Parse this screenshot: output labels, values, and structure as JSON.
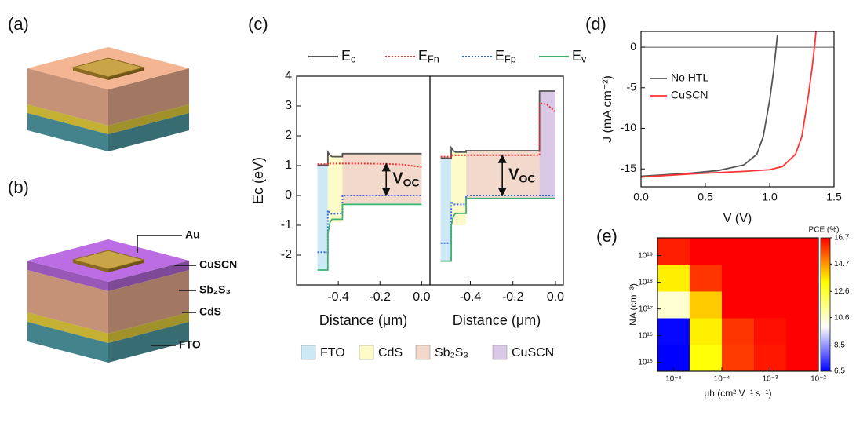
{
  "panel_labels": [
    "(a)",
    "(b)",
    "(c)",
    "(d)",
    "(e)"
  ],
  "device_labels": [
    "Au",
    "CuSCN",
    "Sb₂S₃",
    "CdS",
    "FTO"
  ],
  "chart_data": [
    {
      "type": "line",
      "ylabel": "Ec (eV)",
      "xlabel": "Distance (μm)",
      "xlim": [
        -0.6,
        0.04
      ],
      "ylim": [
        -3,
        4
      ],
      "xticks": [
        -0.4,
        -0.2,
        {
          "value": 0,
          "label": "0.0"
        }
      ],
      "yticks": [
        -2,
        -1,
        0,
        1,
        2,
        3,
        4
      ],
      "x": [
        -0.5,
        -0.45,
        -0.45,
        -0.44,
        -0.43,
        -0.38,
        -0.38,
        -0.3,
        -0.2,
        -0.1,
        0.0
      ],
      "series": [
        {
          "name": "Ec",
          "color": "#555555",
          "dashed": false,
          "values": [
            1.02,
            1.02,
            1.45,
            1.35,
            1.3,
            1.3,
            1.4,
            1.4,
            1.4,
            1.4,
            1.4
          ]
        },
        {
          "name": "EFn",
          "color": "#ee3333",
          "dashed": true,
          "values": [
            1.05,
            1.05,
            1.07,
            1.07,
            1.07,
            1.07,
            1.07,
            1.07,
            1.06,
            1.04,
            0.95
          ]
        },
        {
          "name": "EFp",
          "color": "#3366ee",
          "dashed": true,
          "values": [
            -1.9,
            -1.9,
            -0.5,
            -0.6,
            -0.62,
            -0.6,
            0,
            0,
            0,
            0,
            0
          ]
        },
        {
          "name": "Ev",
          "color": "#3cb371",
          "dashed": false,
          "values": [
            -2.5,
            -2.5,
            -1.3,
            -0.9,
            -0.8,
            -0.8,
            -0.3,
            -0.3,
            -0.3,
            -0.3,
            -0.3
          ]
        }
      ],
      "regions": [
        {
          "color": "#cce9f5",
          "x": [
            -0.5,
            -0.45
          ],
          "y": [
            -2.5,
            1.02
          ]
        },
        {
          "color": "#fdfbc8",
          "x": [
            -0.45,
            -0.38
          ],
          "y": [
            -0.9,
            1.35
          ]
        },
        {
          "color": "#f2d9cc",
          "x": [
            -0.38,
            0.0
          ],
          "y": [
            -0.3,
            1.4
          ]
        }
      ],
      "annotation": {
        "text": "VOC",
        "x": -0.17,
        "y": [
          0,
          1.07
        ]
      }
    },
    {
      "type": "line",
      "xlabel": "Distance (μm)",
      "xlim": [
        -0.59,
        0.037
      ],
      "ylim": [
        -3,
        4
      ],
      "xticks": [
        -0.4,
        -0.2,
        {
          "value": 0,
          "label": "0.0"
        }
      ],
      "x": [
        -0.54,
        -0.49,
        -0.49,
        -0.48,
        -0.47,
        -0.42,
        -0.42,
        -0.3,
        -0.2,
        -0.075,
        -0.075,
        -0.04,
        0.0
      ],
      "series": [
        {
          "color": "#555555",
          "dashed": false,
          "values": [
            1.25,
            1.25,
            1.6,
            1.5,
            1.45,
            1.45,
            1.5,
            1.5,
            1.5,
            1.5,
            3.5,
            3.5,
            3.5
          ]
        },
        {
          "color": "#ee3333",
          "dashed": true,
          "values": [
            1.3,
            1.3,
            1.35,
            1.35,
            1.35,
            1.35,
            1.35,
            1.35,
            1.35,
            1.35,
            3.1,
            3.05,
            2.8
          ]
        },
        {
          "color": "#3366ee",
          "dashed": true,
          "values": [
            -1.6,
            -1.6,
            -0.2,
            -0.3,
            -0.3,
            -0.3,
            0,
            0,
            0,
            0,
            0,
            0,
            0
          ]
        },
        {
          "color": "#3cb371",
          "dashed": false,
          "values": [
            -2.2,
            -2.2,
            -1.0,
            -0.7,
            -0.6,
            -0.6,
            -0.1,
            -0.1,
            -0.1,
            -0.1,
            -0.1,
            -0.1,
            -0.1
          ]
        }
      ],
      "regions": [
        {
          "name": "FTO",
          "color": "#cce9f5",
          "x": [
            -0.54,
            -0.49
          ],
          "y": [
            -2.2,
            1.25
          ]
        },
        {
          "name": "CdS",
          "color": "#fdfbc8",
          "x": [
            -0.49,
            -0.42
          ],
          "y": [
            -1.0,
            1.5
          ]
        },
        {
          "name": "Sb₂S₃",
          "color": "#f2d9cc",
          "x": [
            -0.42,
            -0.075
          ],
          "y": [
            -0.1,
            1.5
          ]
        },
        {
          "name": "CuSCN",
          "color": "#d9c8e6",
          "x": [
            -0.075,
            0.0
          ],
          "y": [
            -0.1,
            3.5
          ]
        }
      ],
      "annotation": {
        "text": "VOC",
        "x": -0.25,
        "y": [
          0,
          1.35
        ]
      }
    },
    {
      "type": "line",
      "ylabel": "J (mA cm⁻²)",
      "xlabel": "V (V)",
      "xlim": [
        0,
        1.5
      ],
      "ylim": [
        -17.2,
        1.94
      ],
      "xticks": [
        {
          "value": 0,
          "label": "0.0"
        },
        0.5,
        {
          "value": 1,
          "label": "1.0"
        },
        1.5
      ],
      "yticks": [
        -15,
        -10,
        -5,
        0
      ],
      "zero_line": true,
      "legend": "upper left",
      "series": [
        {
          "name": "No HTL",
          "color": "#555555",
          "dashed": false,
          "x": [
            0,
            0.2,
            0.4,
            0.6,
            0.8,
            0.9,
            0.95,
            1.0,
            1.03,
            1.05,
            1.06
          ],
          "values": [
            -15.9,
            -15.7,
            -15.5,
            -15.2,
            -14.5,
            -13.2,
            -11,
            -6.5,
            -3,
            0,
            1.5
          ]
        },
        {
          "name": "CuSCN",
          "color": "#ff3333",
          "dashed": false,
          "x": [
            0,
            0.4,
            0.8,
            1.0,
            1.1,
            1.2,
            1.25,
            1.3,
            1.33,
            1.35,
            1.36
          ],
          "values": [
            -16,
            -15.6,
            -15.3,
            -15.1,
            -14.7,
            -13.2,
            -11,
            -6,
            -2.5,
            0.3,
            2
          ]
        }
      ]
    },
    {
      "type": "heatmap",
      "ylabel": "NA (cm⁻³)",
      "xlabel": "μh (cm² V⁻¹ s⁻¹)",
      "colorbar_label": "PCE (%)",
      "log_x": true,
      "log_y": true,
      "xlim": [
        4.64e-06,
        0.01
      ],
      "ylim": [
        464000000000000.0,
        4.64e+19
      ],
      "xbins": [
        4.64e-06,
        2.15e-05,
        0.0001,
        0.000464,
        0.00215,
        0.01
      ],
      "ybins": [
        464000000000000.0,
        4640000000000000.0,
        4.64e+16,
        4.64e+17,
        4.64e+18,
        4.64e+19
      ],
      "xticks": [
        {
          "value": 1e-05,
          "label": "10⁻⁵"
        },
        {
          "value": 0.0001,
          "label": "10⁻⁴"
        },
        {
          "value": 0.001,
          "label": "10⁻³"
        },
        {
          "value": 0.01,
          "label": "10⁻²"
        }
      ],
      "yticks": [
        {
          "value": 1000000000000000.0,
          "label": "10¹⁵"
        },
        {
          "value": 1e+16,
          "label": "10¹⁶"
        },
        {
          "value": 1e+17,
          "label": "10¹⁷"
        },
        {
          "value": 1e+18,
          "label": "10¹⁸"
        },
        {
          "value": 1e+19,
          "label": "10¹⁹"
        }
      ],
      "values": [
        [
          6.5,
          13.2,
          15.9,
          16.4,
          16.7
        ],
        [
          6.6,
          13.5,
          16.0,
          16.5,
          16.7
        ],
        [
          10.5,
          14.0,
          16.7,
          16.7,
          16.7
        ],
        [
          13.5,
          16.0,
          16.7,
          16.7,
          16.7
        ],
        [
          16.3,
          16.7,
          16.7,
          16.7,
          16.7
        ]
      ],
      "zlim": [
        6.5,
        16.7
      ],
      "zticks": [
        6.5,
        8.5,
        10.6,
        12.6,
        14.7,
        16.7
      ],
      "colormap": [
        "#0000ff",
        "#ffffff",
        "#ffff00",
        "#ff0000"
      ]
    }
  ]
}
